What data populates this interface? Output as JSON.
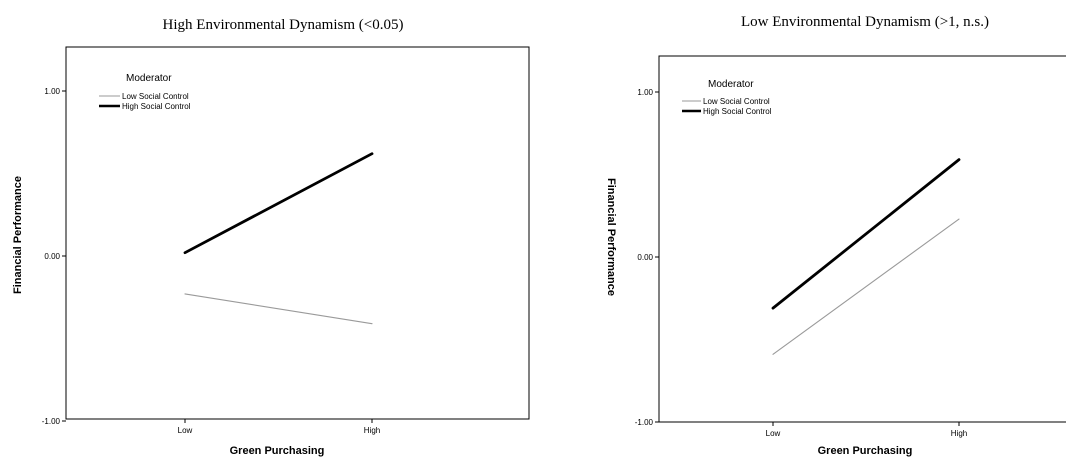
{
  "chart_data": [
    {
      "type": "line",
      "title": "High Environmental Dynamism (<0.05)",
      "xlabel": "Green Purchasing",
      "ylabel": "Financial Performance",
      "categories": [
        "Low",
        "High"
      ],
      "ylim": [
        -1,
        1.2
      ],
      "yticks": [
        -1,
        0,
        1
      ],
      "ytick_labels": [
        "-1.00",
        "0.00",
        "1.00"
      ],
      "legend_title": "Moderator",
      "legend_position": "top-left",
      "grid": false,
      "series": [
        {
          "name": "Low Social Control",
          "values": [
            -0.23,
            -0.41
          ],
          "color": "#9a9a9a"
        },
        {
          "name": "High Social Control",
          "values": [
            0.02,
            0.62
          ],
          "color": "#000000"
        }
      ]
    },
    {
      "type": "line",
      "title": "Low Environmental Dynamism (>1, n.s.)",
      "xlabel": "Green Purchasing",
      "ylabel": "Financial Performance",
      "categories": [
        "Low",
        "High"
      ],
      "ylim": [
        -1,
        1.2
      ],
      "yticks": [
        -1,
        0,
        1
      ],
      "ytick_labels": [
        "-1.00",
        "0.00",
        "1.00"
      ],
      "legend_title": "Moderator",
      "legend_position": "top-left",
      "grid": false,
      "series": [
        {
          "name": "Low Social Control",
          "values": [
            -0.59,
            0.23
          ],
          "color": "#9a9a9a"
        },
        {
          "name": "High Social Control",
          "values": [
            -0.31,
            0.59
          ],
          "color": "#000000"
        }
      ]
    }
  ]
}
